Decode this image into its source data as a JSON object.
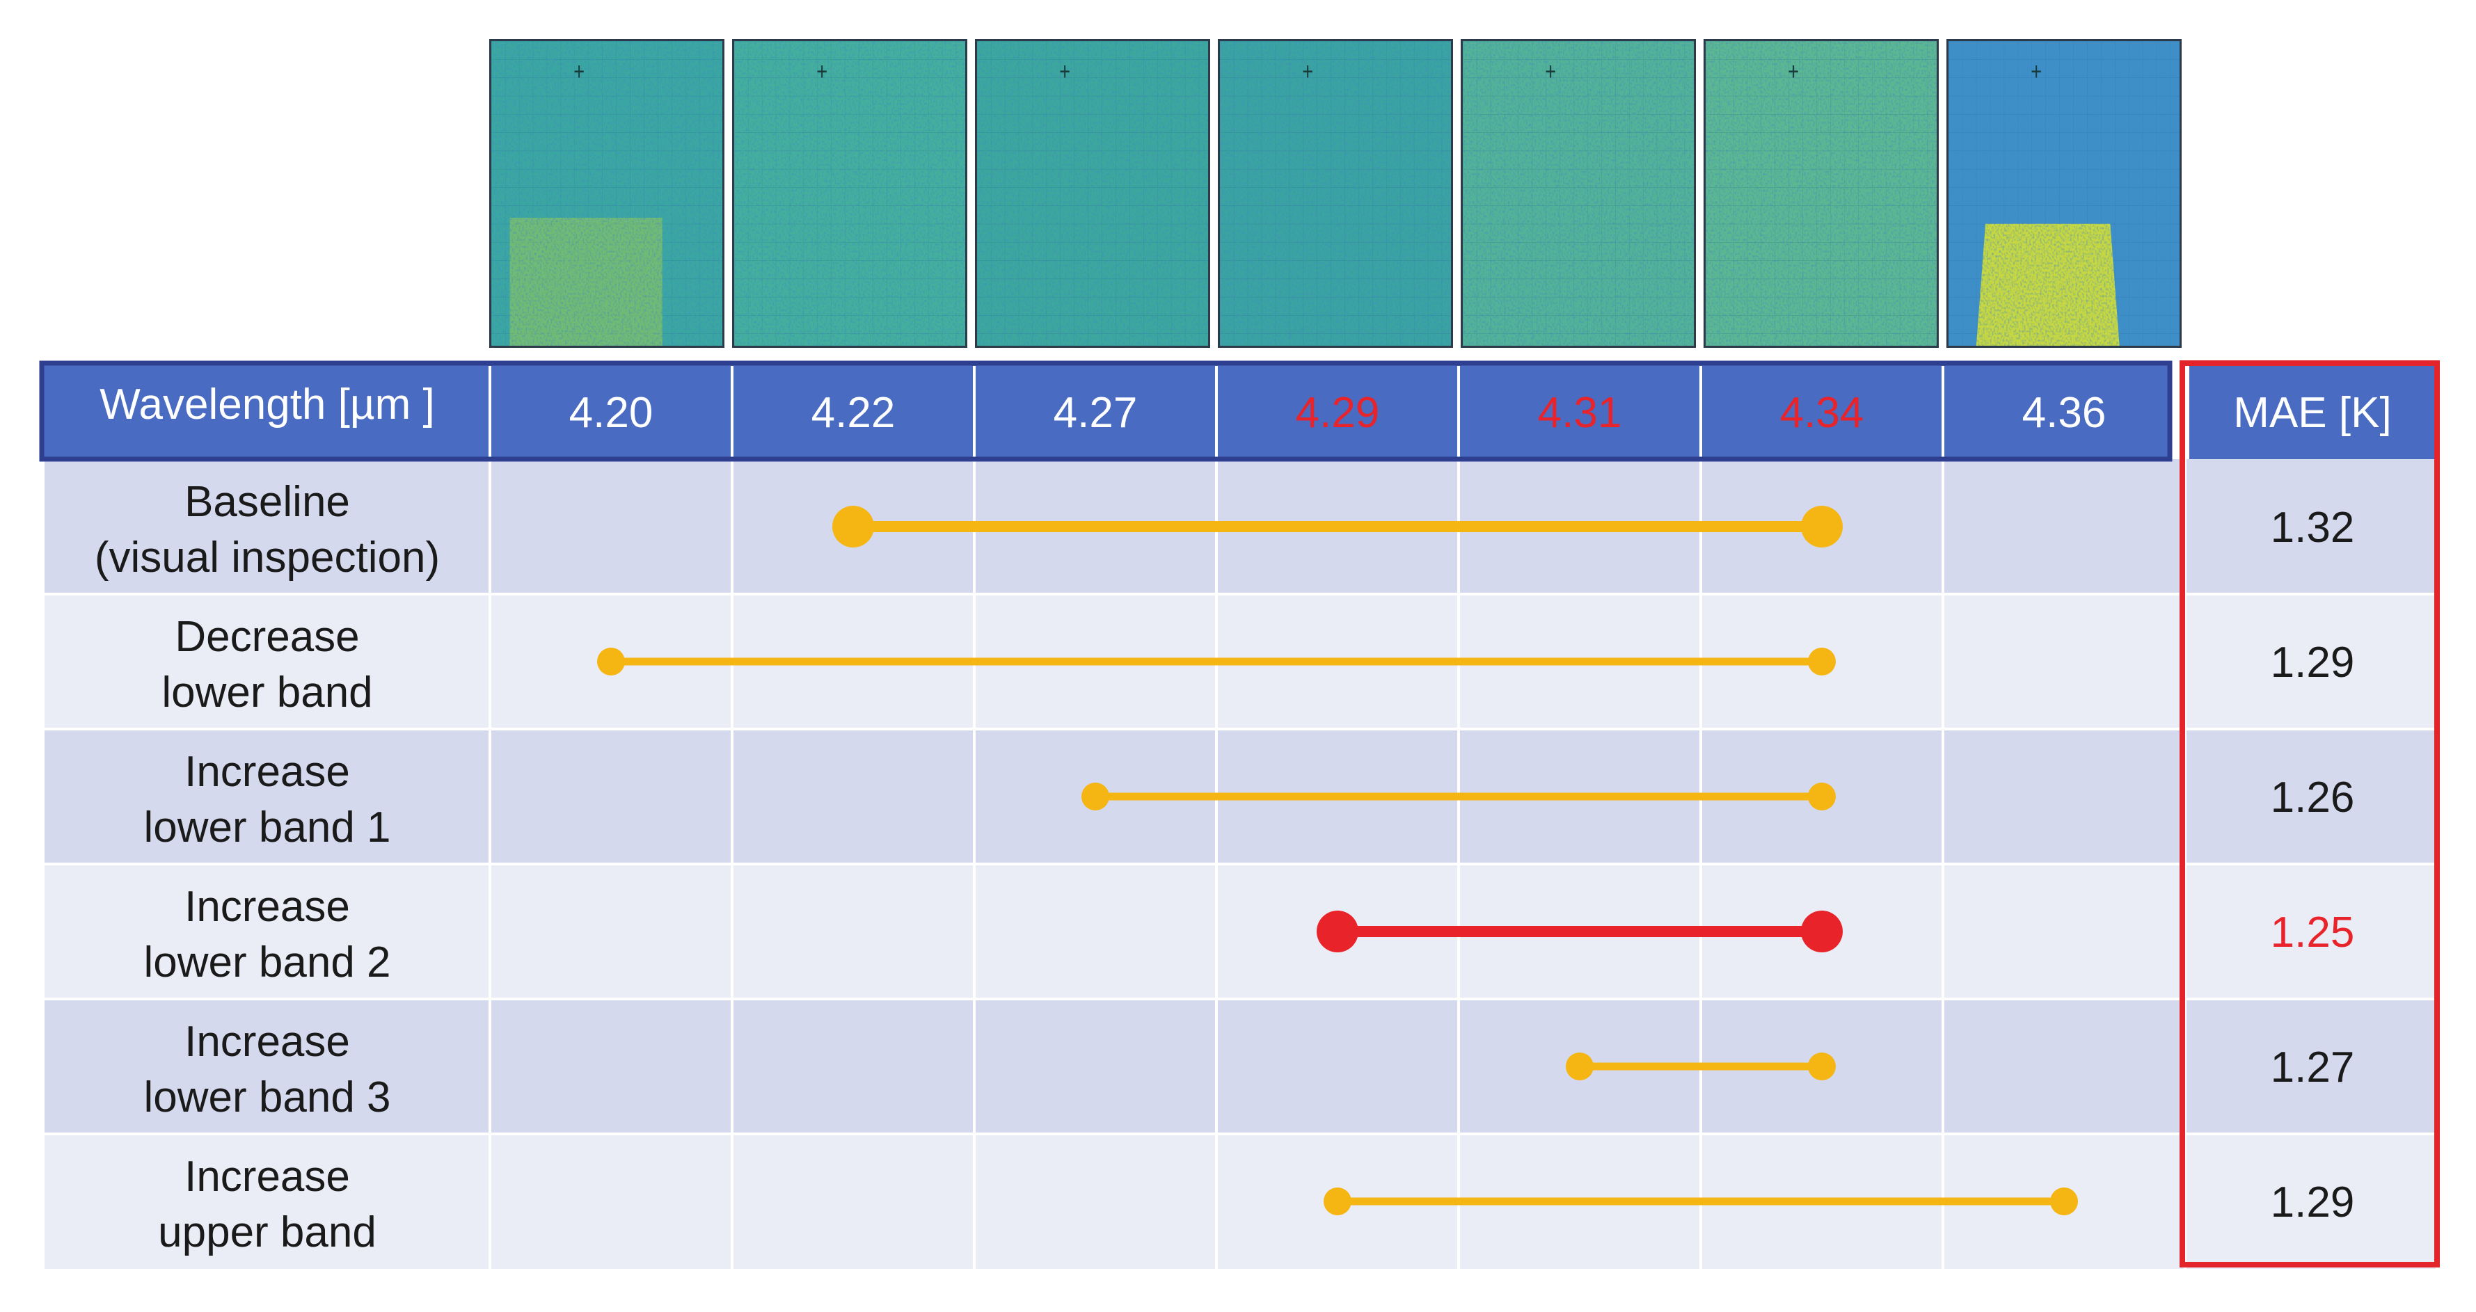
{
  "header": {
    "label": "Wavelength [µm ]",
    "wavelengths": [
      "4.20",
      "4.22",
      "4.27",
      "4.29",
      "4.31",
      "4.34",
      "4.36"
    ],
    "highlighted": [
      false,
      false,
      false,
      true,
      true,
      true,
      false
    ],
    "mae_label": "MAE [K]"
  },
  "rows": [
    {
      "label_line1": "Baseline",
      "label_line2": "(visual inspection)",
      "band_start": "4.22",
      "band_end": "4.34",
      "mae": "1.32",
      "best": false
    },
    {
      "label_line1": "Decrease",
      "label_line2": "lower band",
      "band_start": "4.20",
      "band_end": "4.34",
      "mae": "1.29",
      "best": false
    },
    {
      "label_line1": "Increase",
      "label_line2": "lower band 1",
      "band_start": "4.27",
      "band_end": "4.34",
      "mae": "1.26",
      "best": false
    },
    {
      "label_line1": "Increase",
      "label_line2": "lower band 2",
      "band_start": "4.29",
      "band_end": "4.34",
      "mae": "1.25",
      "best": true
    },
    {
      "label_line1": "Increase",
      "label_line2": "lower band 3",
      "band_start": "4.31",
      "band_end": "4.34",
      "mae": "1.27",
      "best": false
    },
    {
      "label_line1": "Increase",
      "label_line2": "upper band",
      "band_start": "4.29",
      "band_end": "4.36",
      "mae": "1.29",
      "best": false
    }
  ],
  "colors": {
    "header_fill": "#4a6bc2",
    "header_border": "#2f3f8f",
    "row_dark": "#d5d9ee",
    "row_light": "#ebedf6",
    "band_line": "#f5b513",
    "best_line": "#e8232a",
    "highlight_text": "#e8232a",
    "mae_box": "#e3242b"
  }
}
